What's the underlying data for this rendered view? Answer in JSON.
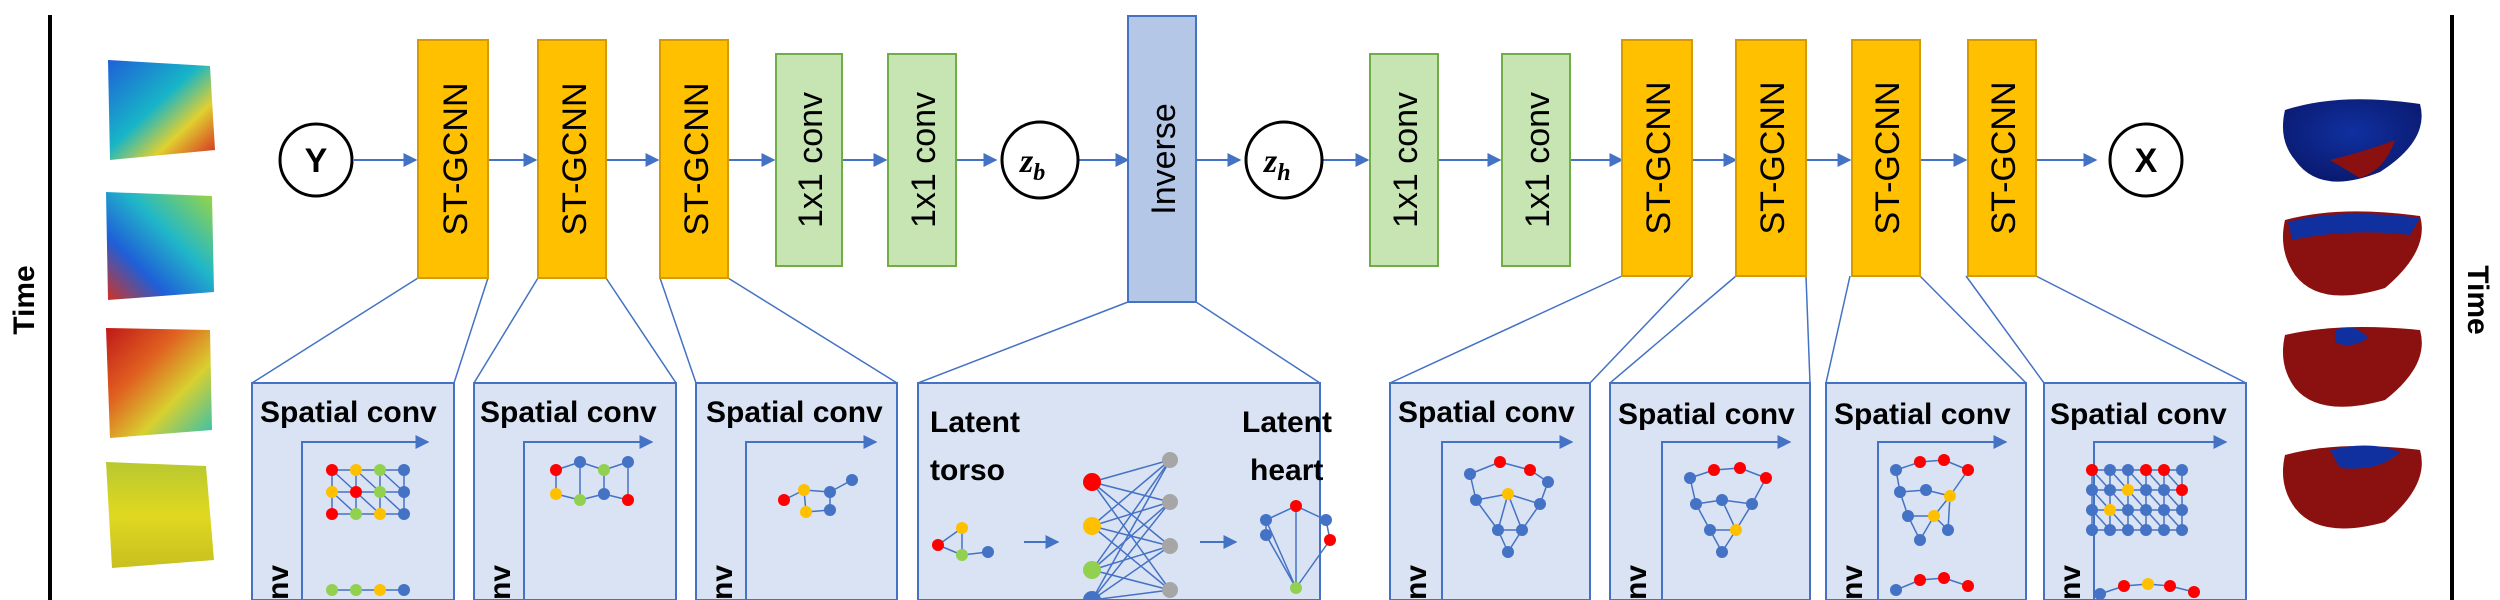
{
  "time_label": "Time",
  "nodes": {
    "input": "Y",
    "output": "X",
    "zb": "z",
    "zb_sub": "b",
    "zh": "z",
    "zh_sub": "h"
  },
  "blocks": {
    "stgcnn": "ST-GCNN",
    "conv1x1": "1x1 conv",
    "inverse": "Inverse"
  },
  "detail": {
    "spatial_conv": "Spatial conv",
    "temporal_partial": "nv",
    "latent_torso_1": "Latent",
    "latent_torso_2": "torso",
    "latent_heart_1": "Latent",
    "latent_heart_2": "heart"
  },
  "colors": {
    "stgcnn_fill": "#ffc000",
    "stgcnn_stroke": "#d69b00",
    "conv_fill": "#c6e5b3",
    "conv_stroke": "#70ad47",
    "inverse_fill": "#b4c7e7",
    "inverse_stroke": "#4472c4",
    "panel_fill": "#dae3f3",
    "panel_stroke": "#4472c4",
    "arrow": "#4472c4",
    "node_red": "#ff0000",
    "node_yellow": "#ffc000",
    "node_green": "#92d050",
    "node_blue": "#4472c4",
    "node_gray": "#a6a6a6"
  }
}
